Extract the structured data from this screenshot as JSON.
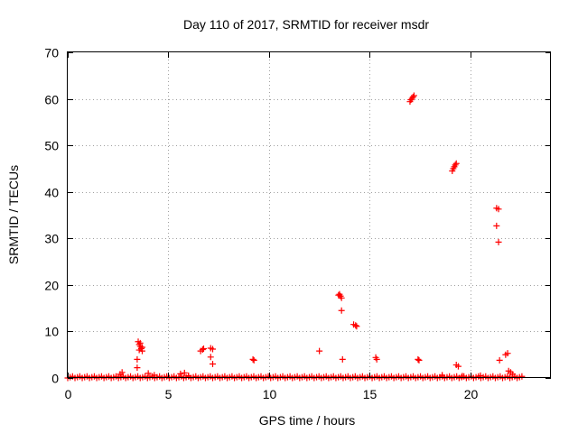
{
  "chart_data": {
    "type": "scatter",
    "title": "Day 110 of 2017, SRMTID for receiver msdr",
    "xlabel": "GPS time / hours",
    "ylabel": "SRMTID / TECUs",
    "xlim": [
      0,
      24
    ],
    "ylim": [
      0,
      70
    ],
    "xticks": [
      0,
      5,
      10,
      15,
      20
    ],
    "yticks": [
      0,
      10,
      20,
      30,
      40,
      50,
      60,
      70
    ],
    "grid": true,
    "marker": "+",
    "color": "#ff0000",
    "series": [
      {
        "name": "SRMTID",
        "points": [
          [
            3.45,
            4.0
          ],
          [
            3.45,
            2.2
          ],
          [
            3.5,
            7.8
          ],
          [
            3.55,
            7.2
          ],
          [
            3.6,
            6.8
          ],
          [
            3.65,
            6.3
          ],
          [
            3.7,
            5.8
          ],
          [
            3.55,
            6.0
          ],
          [
            3.6,
            7.5
          ],
          [
            3.7,
            6.6
          ],
          [
            6.6,
            5.8
          ],
          [
            6.7,
            6.1
          ],
          [
            6.75,
            6.3
          ],
          [
            7.1,
            6.4
          ],
          [
            7.2,
            6.2
          ],
          [
            7.1,
            4.5
          ],
          [
            7.2,
            3.0
          ],
          [
            9.2,
            4.0
          ],
          [
            9.25,
            3.8
          ],
          [
            12.5,
            5.8
          ],
          [
            13.5,
            18.0
          ],
          [
            13.55,
            17.6
          ],
          [
            13.6,
            17.2
          ],
          [
            13.45,
            17.8
          ],
          [
            13.6,
            14.5
          ],
          [
            13.65,
            4.0
          ],
          [
            14.2,
            11.5
          ],
          [
            14.3,
            11.3
          ],
          [
            14.35,
            11.1
          ],
          [
            15.3,
            4.4
          ],
          [
            15.35,
            4.0
          ],
          [
            17.0,
            59.4
          ],
          [
            17.05,
            59.8
          ],
          [
            17.1,
            60.1
          ],
          [
            17.15,
            60.4
          ],
          [
            17.2,
            60.7
          ],
          [
            17.4,
            4.0
          ],
          [
            17.45,
            3.8
          ],
          [
            19.1,
            44.5
          ],
          [
            19.15,
            45.0
          ],
          [
            19.2,
            45.4
          ],
          [
            19.25,
            45.8
          ],
          [
            19.3,
            46.1
          ],
          [
            19.3,
            2.8
          ],
          [
            19.4,
            2.5
          ],
          [
            21.3,
            36.5
          ],
          [
            21.4,
            36.3
          ],
          [
            21.3,
            32.7
          ],
          [
            21.4,
            29.2
          ],
          [
            21.45,
            3.8
          ],
          [
            21.75,
            5.0
          ],
          [
            21.85,
            5.3
          ],
          [
            21.9,
            1.5
          ],
          [
            22.0,
            1.2
          ],
          [
            22.1,
            0.8
          ],
          [
            2.6,
            0.8
          ],
          [
            2.7,
            1.2
          ],
          [
            4.0,
            1.0
          ],
          [
            4.3,
            0.6
          ],
          [
            5.6,
            0.9
          ],
          [
            5.8,
            1.1
          ],
          [
            6.0,
            0.5
          ],
          [
            18.6,
            0.6
          ],
          [
            19.6,
            0.4
          ],
          [
            20.5,
            0.5
          ]
        ],
        "baseline": {
          "x_start": 0.0,
          "x_end": 22.6,
          "step": 0.12,
          "y_max": 0.5
        }
      }
    ]
  }
}
